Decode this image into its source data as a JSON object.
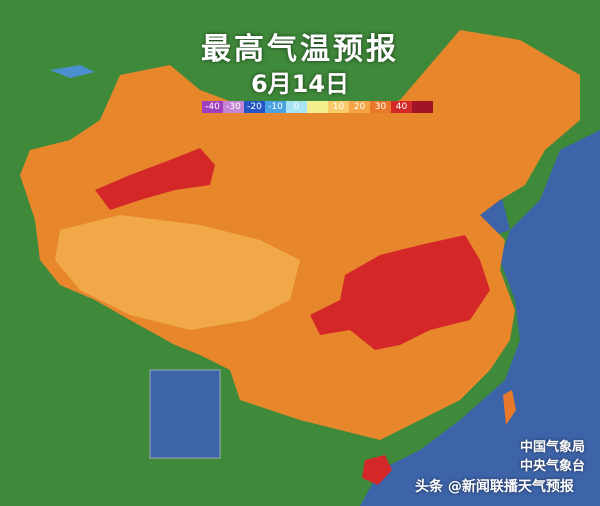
{
  "title": "最高气温预报",
  "date": "6月14日",
  "legend": {
    "labels": [
      "-40",
      "-30",
      "-20",
      "-10",
      "0",
      "",
      "10",
      "20",
      "30",
      "40",
      ""
    ],
    "colors": [
      "#a040c0",
      "#c485d4",
      "#2356c4",
      "#4aa2e0",
      "#a8e4f4",
      "#f4f090",
      "#f8cc6a",
      "#f4a445",
      "#e8792a",
      "#d42828",
      "#a01428"
    ]
  },
  "credits": {
    "line1": "中国气象局",
    "line2": "中央气象台",
    "watermark": "头条 @新闻联播天气预报"
  },
  "colors": {
    "land": "#3f8a3a",
    "sea": "#3d63a8",
    "hot": "#e8792a",
    "very_hot": "#d42828"
  }
}
